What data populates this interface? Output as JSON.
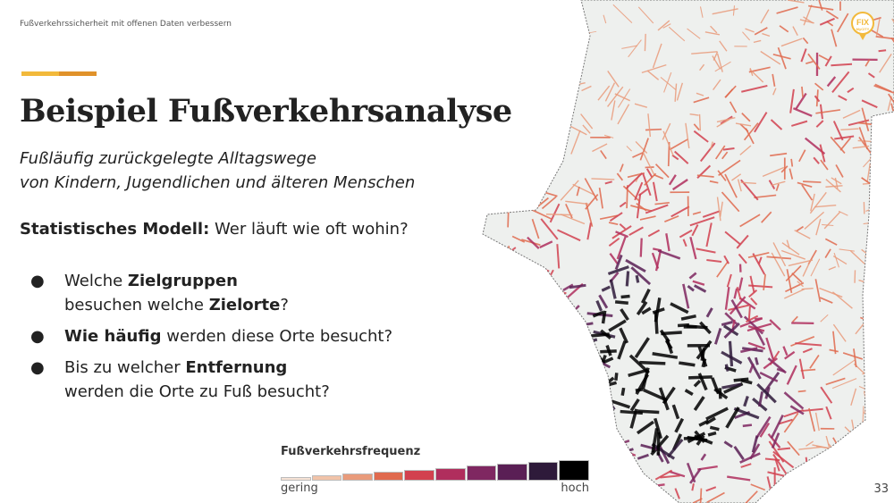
{
  "header": {
    "text": "Fußverkehrssicherheit mit offenen Daten verbessern"
  },
  "title": "Beispiel Fußverkehrsanalyse",
  "subtitle": {
    "line1": "Fußläufig zurückgelegte Alltagswege",
    "line2": "von Kindern, Jugendlichen und älteren Menschen"
  },
  "model": {
    "bold": "Statistisches Modell:",
    "text": " Wer läuft wie oft wohin?"
  },
  "bullets": [
    {
      "parts": [
        {
          "t": "Welche "
        },
        {
          "b": "Zielgruppen"
        },
        {
          "br": true
        },
        {
          "t": "besuchen welche "
        },
        {
          "b": "Zielorte"
        },
        {
          "t": "?"
        }
      ]
    },
    {
      "parts": [
        {
          "b": "Wie häufig"
        },
        {
          "t": " werden diese Orte besucht?"
        }
      ]
    },
    {
      "parts": [
        {
          "t": "Bis zu welcher "
        },
        {
          "b": "Entfernung"
        },
        {
          "br": true
        },
        {
          "t": "werden die Orte zu Fuß besucht?"
        }
      ]
    }
  ],
  "bullet_symbol": "●",
  "legend": {
    "title": "Fußverkehrsfrequenz",
    "low": "gering",
    "high": "hoch",
    "colors": [
      "#f6e2d5",
      "#f1c3a8",
      "#e99b7b",
      "#e06a4e",
      "#d2414f",
      "#b02e5d",
      "#7f2761",
      "#5a1f55",
      "#2e1a3a",
      "#000000"
    ]
  },
  "logo": {
    "text_main": "FIX",
    "text_sub": "MyCITY",
    "color": "#f2b93b"
  },
  "page_number": "33",
  "colors": {
    "accent1": "#f2b93b",
    "accent2": "#e0922a",
    "map_bg": "#eef0ee"
  }
}
